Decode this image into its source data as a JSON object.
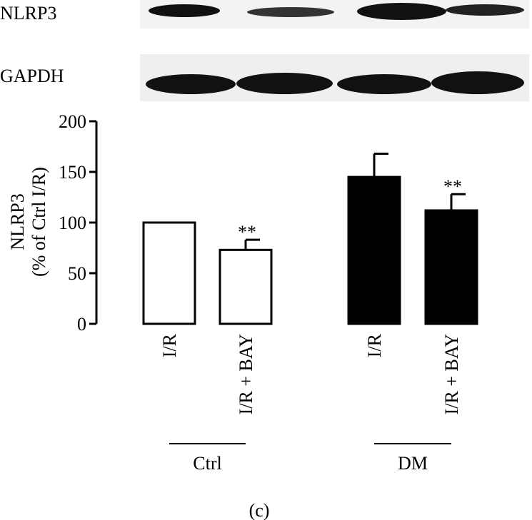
{
  "blot": {
    "rows": [
      {
        "label": "NLRP3",
        "intensities": [
          0.9,
          0.55,
          1.0,
          0.75
        ]
      },
      {
        "label": "GAPDH",
        "intensities": [
          1.0,
          1.0,
          1.0,
          1.0
        ]
      }
    ]
  },
  "chart_data": {
    "type": "bar",
    "ylabel_line1": "NLRP3",
    "ylabel_line2": "(% of Ctrl I/R)",
    "ylim": [
      0,
      200
    ],
    "yticks": [
      0,
      50,
      100,
      150,
      200
    ],
    "bars": [
      {
        "label": "I/R",
        "group": "Ctrl",
        "value": 100,
        "error": 0,
        "sig": "",
        "fill": "#ffffff"
      },
      {
        "label": "I/R + BAY",
        "group": "Ctrl",
        "value": 73,
        "error": 10,
        "sig": "**",
        "fill": "#ffffff"
      },
      {
        "label": "I/R",
        "group": "DM",
        "value": 145,
        "error": 23,
        "sig": "",
        "fill": "#000000"
      },
      {
        "label": "I/R + BAY",
        "group": "DM",
        "value": 112,
        "error": 16,
        "sig": "**",
        "fill": "#000000"
      }
    ],
    "groups": [
      "Ctrl",
      "DM"
    ],
    "panel_label": "(c)"
  }
}
